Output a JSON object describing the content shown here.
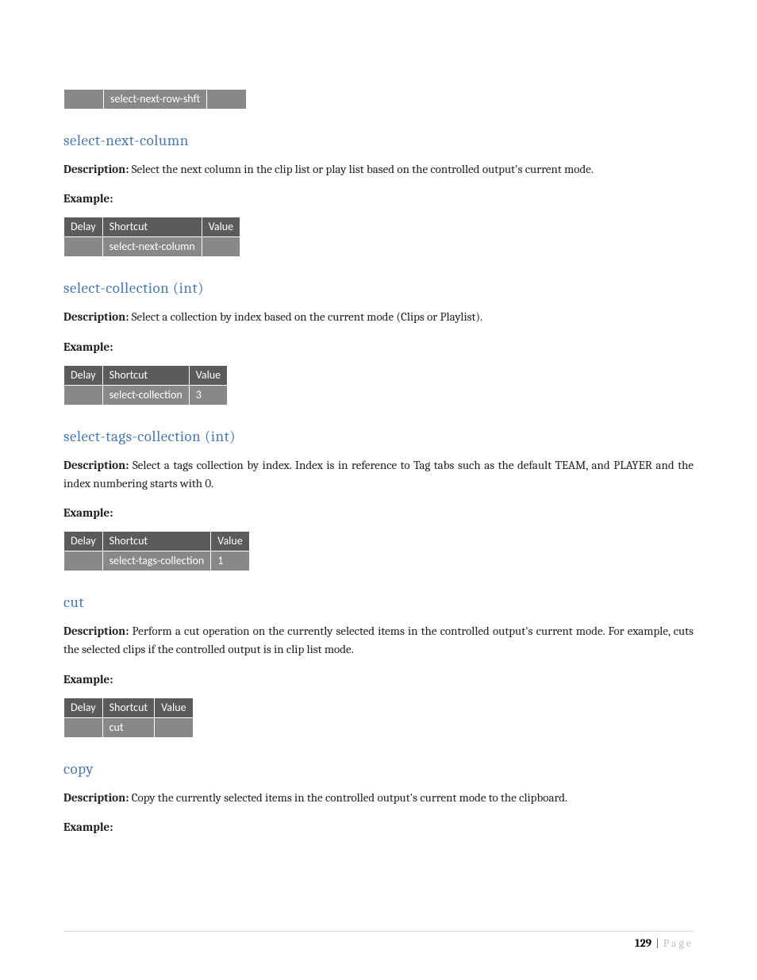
{
  "top_row": {
    "shortcut": "select-next-row-shft"
  },
  "table_headers": {
    "delay": "Delay",
    "shortcut": "Shortcut",
    "value": "Value"
  },
  "labels": {
    "description": "Description:",
    "example": "Example:"
  },
  "sections": [
    {
      "title": "select-next-column",
      "description": "Select the next column in the clip list or play list based on the controlled output's current mode.",
      "row": {
        "delay": "",
        "shortcut": "select-next-column",
        "value": ""
      }
    },
    {
      "title": "select-collection (int)",
      "description": "Select a collection by index based on the current mode (Clips or Playlist).",
      "row": {
        "delay": "",
        "shortcut": "select-collection",
        "value": "3"
      }
    },
    {
      "title": "select-tags-collection (int)",
      "description": "Select a tags collection by index. Index is in reference to Tag tabs such as the default TEAM, and PLAYER and the index numbering starts with 0.",
      "row": {
        "delay": "",
        "shortcut": "select-tags-collection",
        "value": "1"
      }
    },
    {
      "title": "cut",
      "description": "Perform a cut operation on the currently selected items in the controlled output's current mode.  For example, cuts the selected clips if the controlled output is in clip list mode.",
      "row": {
        "delay": "",
        "shortcut": "cut",
        "value": ""
      }
    },
    {
      "title": "copy",
      "description": "Copy the currently selected items in the controlled output's current mode to the clipboard.",
      "row": null
    }
  ],
  "footer": {
    "page_number": "129",
    "separator": "|",
    "page_word": "Page"
  }
}
